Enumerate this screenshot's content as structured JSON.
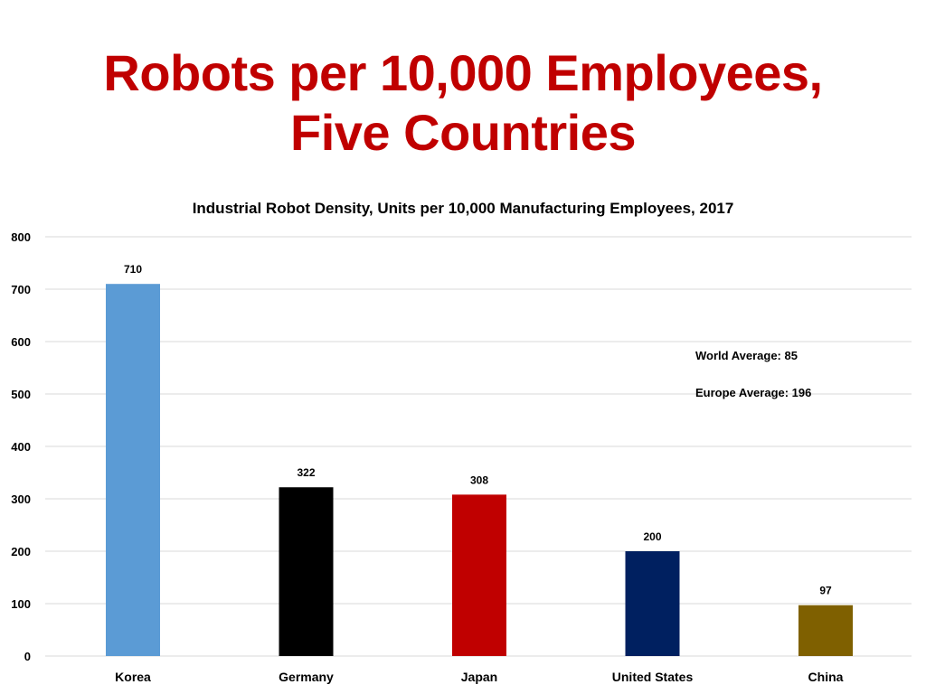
{
  "slide": {
    "title_line1": "Robots per 10,000 Employees,",
    "title_line2": "Five Countries"
  },
  "chart_data": {
    "type": "bar",
    "title": "Industrial Robot Density, Units per 10,000 Manufacturing Employees, 2017",
    "xlabel": "",
    "ylabel": "",
    "categories": [
      "Korea",
      "Germany",
      "Japan",
      "United States",
      "China"
    ],
    "values": [
      710,
      322,
      308,
      200,
      97
    ],
    "data_labels": [
      "710",
      "322",
      "308",
      "200",
      "97"
    ],
    "colors": [
      "#5b9bd5",
      "#000000",
      "#c00000",
      "#002060",
      "#7f6000"
    ],
    "ylim": [
      0,
      800
    ],
    "yticks": [
      0,
      100,
      200,
      300,
      400,
      500,
      600,
      700,
      800
    ],
    "ytick_labels": [
      "0",
      "100",
      "200",
      "300",
      "400",
      "500",
      "600",
      "700",
      "800"
    ],
    "grid": true,
    "legend": "none",
    "annotations": [
      "World Average: 85",
      "Europe Average: 196"
    ]
  }
}
